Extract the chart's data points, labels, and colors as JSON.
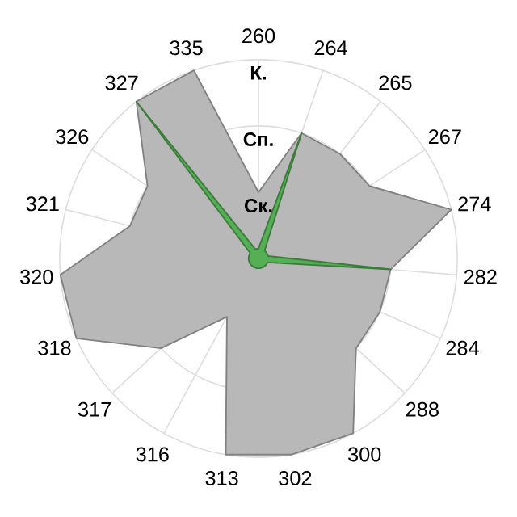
{
  "chart_data": {
    "type": "radar",
    "categories": [
      "260",
      "264",
      "265",
      "267",
      "274",
      "282",
      "284",
      "288",
      "300",
      "302",
      "313",
      "316",
      "317",
      "318",
      "320",
      "321",
      "326",
      "327",
      "335"
    ],
    "series": [
      {
        "color": "#b8b8b8",
        "values": [
          1,
          2,
          2,
          2,
          3,
          2,
          2,
          2,
          3,
          3,
          3,
          1,
          2,
          3,
          3,
          2,
          2,
          3,
          3
        ]
      },
      {
        "color": "#55b055",
        "values": [
          0.15,
          2,
          0.15,
          0.15,
          0.15,
          2,
          0.15,
          0.15,
          0.15,
          0.15,
          0.15,
          0.15,
          0.15,
          0.15,
          0.15,
          0.15,
          0.15,
          3,
          0.15
        ]
      }
    ],
    "ylim": [
      0,
      3
    ],
    "yticks": [
      {
        "value": 1,
        "label": "Ск."
      },
      {
        "value": 2,
        "label": "Сп."
      },
      {
        "value": 3,
        "label": "К."
      }
    ],
    "grid": true
  }
}
